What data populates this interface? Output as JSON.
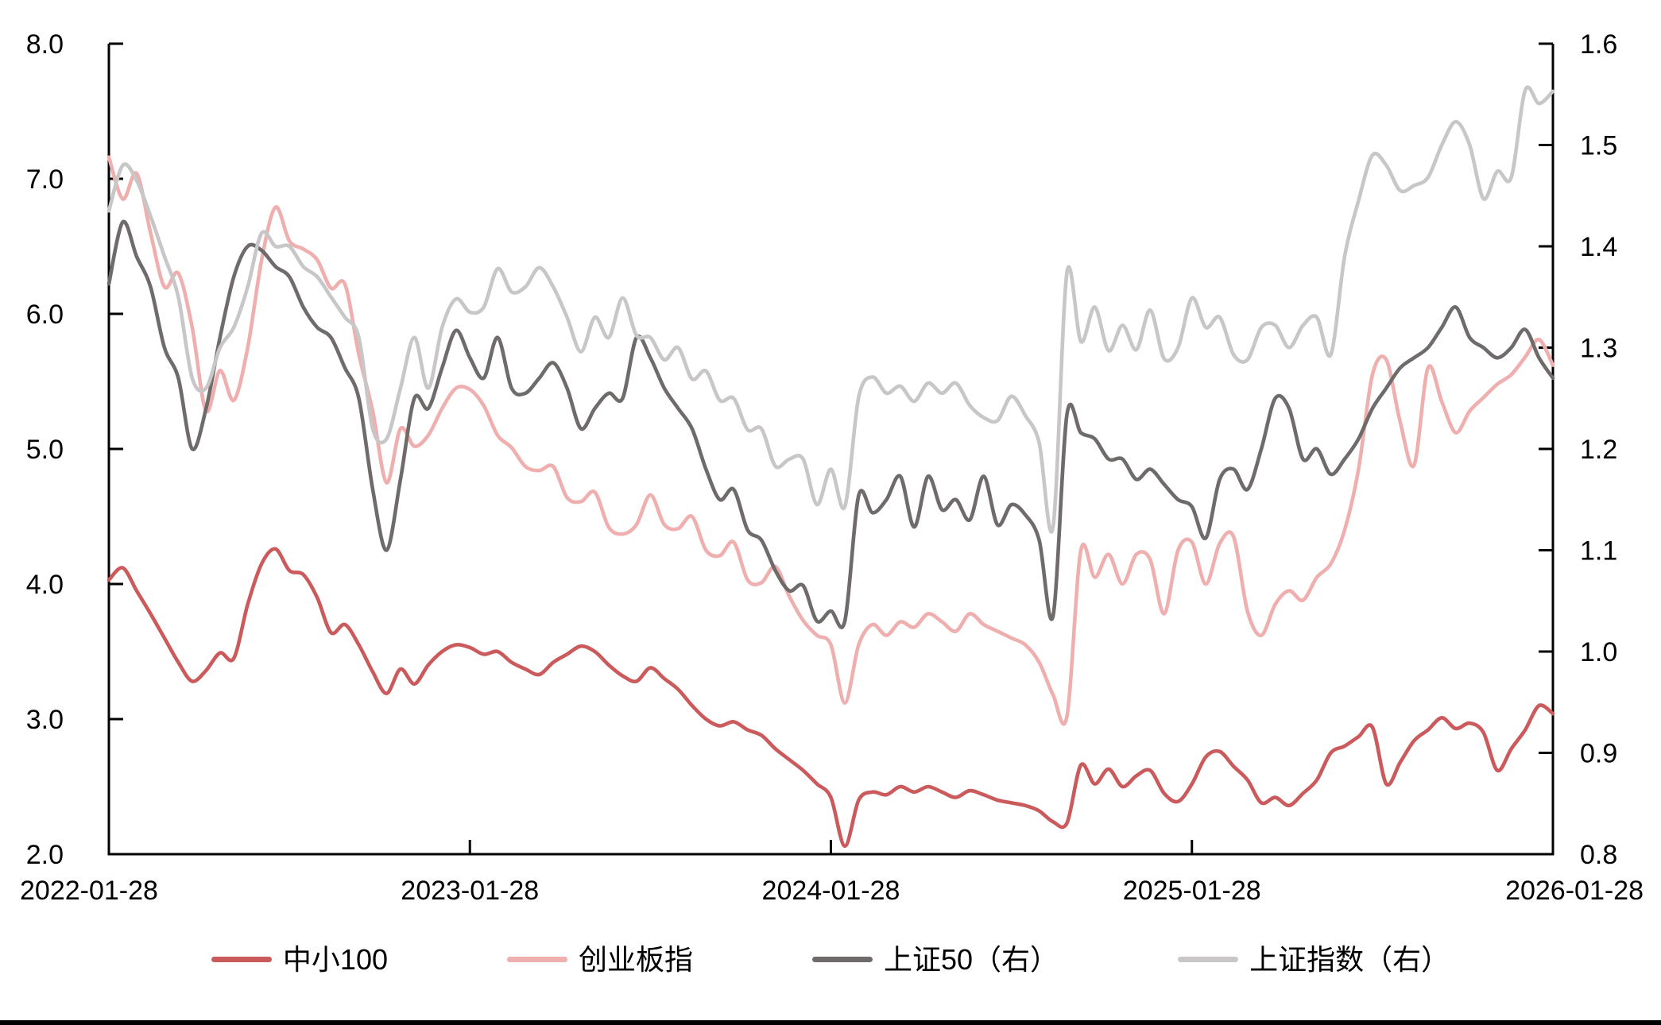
{
  "chart_data": {
    "type": "line",
    "title": "",
    "xlabel": "",
    "ylabel_left": "",
    "ylabel_right": "",
    "grid": false,
    "legend_position": "bottom",
    "x_axis": {
      "tick_labels": [
        "2022-01-28",
        "2023-01-28",
        "2024-01-28",
        "2025-01-28",
        "2026-01-28"
      ],
      "points_between_ticks": 26,
      "total_points": 105
    },
    "left_axis": {
      "min": 2.0,
      "max": 8.0,
      "tick_labels": [
        "8.0",
        "7.0",
        "6.0",
        "5.0",
        "4.0",
        "3.0",
        "2.0"
      ],
      "tick_values": [
        8.0,
        7.0,
        6.0,
        5.0,
        4.0,
        3.0,
        2.0
      ]
    },
    "right_axis": {
      "min": 0.8,
      "max": 1.6,
      "tick_labels": [
        "1.6",
        "1.5",
        "1.4",
        "1.3",
        "1.2",
        "1.1",
        "1.0",
        "0.9",
        "0.8"
      ],
      "tick_values": [
        1.6,
        1.5,
        1.4,
        1.3,
        1.2,
        1.1,
        1.0,
        0.9,
        0.8
      ]
    },
    "series": [
      {
        "name": "中小100",
        "axis": "left",
        "color": "#CB5A5C",
        "values": [
          4.03,
          4.12,
          3.95,
          3.78,
          3.6,
          3.42,
          3.28,
          3.36,
          3.49,
          3.45,
          3.85,
          4.15,
          4.26,
          4.1,
          4.07,
          3.9,
          3.64,
          3.7,
          3.55,
          3.35,
          3.19,
          3.37,
          3.26,
          3.4,
          3.5,
          3.55,
          3.53,
          3.48,
          3.5,
          3.42,
          3.37,
          3.33,
          3.42,
          3.48,
          3.54,
          3.5,
          3.4,
          3.32,
          3.28,
          3.38,
          3.3,
          3.22,
          3.1,
          3.0,
          2.95,
          2.98,
          2.92,
          2.88,
          2.78,
          2.7,
          2.62,
          2.52,
          2.42,
          2.06,
          2.4,
          2.46,
          2.44,
          2.5,
          2.46,
          2.5,
          2.46,
          2.42,
          2.47,
          2.44,
          2.4,
          2.38,
          2.36,
          2.32,
          2.24,
          2.23,
          2.66,
          2.52,
          2.63,
          2.5,
          2.58,
          2.62,
          2.45,
          2.39,
          2.52,
          2.72,
          2.76,
          2.65,
          2.55,
          2.38,
          2.42,
          2.36,
          2.45,
          2.55,
          2.75,
          2.8,
          2.87,
          2.94,
          2.52,
          2.68,
          2.84,
          2.92,
          3.01,
          2.93,
          2.97,
          2.9,
          2.62,
          2.78,
          2.92,
          3.1,
          3.04
        ]
      },
      {
        "name": "创业板指",
        "axis": "left",
        "color": "#F0AFAF",
        "values": [
          7.16,
          6.85,
          7.04,
          6.6,
          6.2,
          6.3,
          5.9,
          5.28,
          5.58,
          5.36,
          5.75,
          6.4,
          6.79,
          6.54,
          6.48,
          6.4,
          6.19,
          6.22,
          5.7,
          5.28,
          4.75,
          5.15,
          5.02,
          5.1,
          5.3,
          5.45,
          5.44,
          5.32,
          5.1,
          5.01,
          4.87,
          4.84,
          4.87,
          4.64,
          4.61,
          4.68,
          4.42,
          4.37,
          4.44,
          4.66,
          4.44,
          4.41,
          4.5,
          4.25,
          4.21,
          4.31,
          4.03,
          4.01,
          4.13,
          3.91,
          3.73,
          3.62,
          3.55,
          3.12,
          3.55,
          3.7,
          3.62,
          3.72,
          3.68,
          3.78,
          3.72,
          3.65,
          3.78,
          3.7,
          3.65,
          3.6,
          3.55,
          3.42,
          3.18,
          3.02,
          4.25,
          4.05,
          4.22,
          4.0,
          4.22,
          4.18,
          3.78,
          4.25,
          4.31,
          4.0,
          4.3,
          4.35,
          3.8,
          3.62,
          3.85,
          3.95,
          3.88,
          4.05,
          4.15,
          4.4,
          4.85,
          5.55,
          5.66,
          5.2,
          4.88,
          5.6,
          5.35,
          5.12,
          5.28,
          5.38,
          5.48,
          5.55,
          5.68,
          5.81,
          5.62
        ]
      },
      {
        "name": "上证50（右）",
        "axis": "right",
        "color": "#6F6B6B",
        "values": [
          1.363,
          1.424,
          1.39,
          1.36,
          1.3,
          1.27,
          1.2,
          1.24,
          1.31,
          1.37,
          1.4,
          1.396,
          1.38,
          1.37,
          1.34,
          1.32,
          1.31,
          1.28,
          1.25,
          1.16,
          1.1,
          1.17,
          1.25,
          1.24,
          1.28,
          1.317,
          1.29,
          1.27,
          1.31,
          1.26,
          1.255,
          1.27,
          1.285,
          1.26,
          1.22,
          1.24,
          1.255,
          1.25,
          1.31,
          1.29,
          1.26,
          1.24,
          1.22,
          1.18,
          1.15,
          1.16,
          1.12,
          1.11,
          1.08,
          1.06,
          1.065,
          1.03,
          1.04,
          1.03,
          1.154,
          1.137,
          1.15,
          1.173,
          1.123,
          1.173,
          1.14,
          1.15,
          1.13,
          1.173,
          1.125,
          1.145,
          1.135,
          1.11,
          1.035,
          1.234,
          1.216,
          1.21,
          1.19,
          1.19,
          1.17,
          1.18,
          1.165,
          1.15,
          1.143,
          1.112,
          1.17,
          1.18,
          1.16,
          1.2,
          1.25,
          1.24,
          1.19,
          1.2,
          1.175,
          1.19,
          1.21,
          1.24,
          1.26,
          1.28,
          1.29,
          1.3,
          1.32,
          1.34,
          1.31,
          1.3,
          1.29,
          1.3,
          1.318,
          1.29,
          1.27
        ]
      },
      {
        "name": "上证指数（右）",
        "axis": "right",
        "color": "#C8C6C6",
        "values": [
          1.435,
          1.48,
          1.465,
          1.43,
          1.39,
          1.35,
          1.27,
          1.26,
          1.3,
          1.32,
          1.36,
          1.413,
          1.4,
          1.4,
          1.38,
          1.37,
          1.35,
          1.33,
          1.31,
          1.22,
          1.21,
          1.26,
          1.31,
          1.26,
          1.32,
          1.348,
          1.335,
          1.34,
          1.378,
          1.355,
          1.36,
          1.379,
          1.36,
          1.33,
          1.296,
          1.33,
          1.31,
          1.349,
          1.312,
          1.31,
          1.288,
          1.3,
          1.269,
          1.277,
          1.248,
          1.25,
          1.219,
          1.22,
          1.183,
          1.19,
          1.19,
          1.145,
          1.18,
          1.143,
          1.251,
          1.271,
          1.255,
          1.262,
          1.247,
          1.265,
          1.255,
          1.265,
          1.243,
          1.231,
          1.228,
          1.252,
          1.233,
          1.206,
          1.123,
          1.374,
          1.306,
          1.34,
          1.297,
          1.322,
          1.298,
          1.337,
          1.289,
          1.3,
          1.349,
          1.32,
          1.33,
          1.293,
          1.288,
          1.32,
          1.322,
          1.3,
          1.322,
          1.33,
          1.293,
          1.39,
          1.445,
          1.49,
          1.48,
          1.455,
          1.46,
          1.468,
          1.5,
          1.523,
          1.5,
          1.447,
          1.474,
          1.468,
          1.554,
          1.541,
          1.553
        ]
      }
    ]
  },
  "layout_colors": {
    "background": "#FFFFFF",
    "axis": "#000000",
    "tick_text": "#000000",
    "bottom_rule": "#000000"
  }
}
